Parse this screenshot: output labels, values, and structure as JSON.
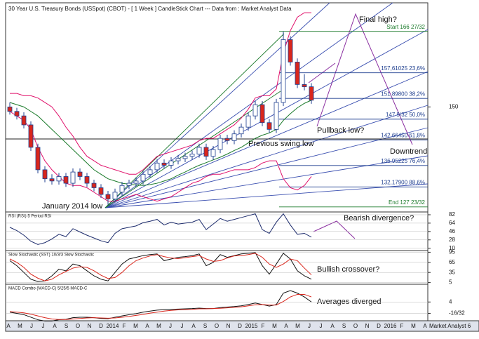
{
  "chart_data": [
    {
      "type": "candlestick",
      "title": "30 Year U.S. Treasury Bonds (USSpot) (CBOT) -  [ 1 Week ] CandleStick Chart --- Data from : Market Analyst Data",
      "open": [
        150,
        149,
        148,
        146,
        141,
        136,
        134,
        133.5,
        134.5,
        133,
        135.5,
        134.5,
        133,
        132,
        130.5,
        129.5,
        131,
        132.5,
        133,
        133.5,
        135,
        136,
        137.5,
        137,
        138,
        138.5,
        139,
        139.5,
        141,
        139,
        140.5,
        143,
        142.5,
        144,
        145.5,
        148,
        150.5,
        146.5,
        145,
        151,
        165,
        160,
        155,
        154.5
      ],
      "high": [
        151,
        149.8,
        148.8,
        146.8,
        141.8,
        136.8,
        135,
        135.3,
        135.3,
        136.3,
        136.3,
        135.3,
        133.8,
        132.8,
        131.3,
        131.8,
        133.3,
        133.8,
        134.3,
        135.8,
        136.8,
        138.3,
        138.3,
        138.8,
        139.3,
        139.8,
        140.3,
        141.8,
        141.8,
        141.3,
        143.8,
        143.8,
        144.8,
        146.3,
        148.8,
        151.3,
        151.3,
        147.3,
        151.8,
        166.8,
        165.8,
        160.8,
        157.3,
        155.3
      ],
      "low": [
        148.3,
        147.2,
        145.2,
        140.2,
        135.2,
        133.2,
        132.7,
        132.7,
        132.2,
        132.2,
        133.7,
        132.2,
        131.2,
        129.7,
        128.2,
        128.7,
        130.2,
        131.7,
        132.2,
        132.7,
        134.2,
        135.2,
        136.2,
        136.2,
        137.2,
        137.7,
        138.2,
        138.7,
        138.2,
        138.2,
        139.7,
        141.7,
        141.7,
        143.2,
        144.7,
        147.2,
        145.7,
        144.2,
        144.2,
        150.2,
        159.2,
        154.2,
        153.7,
        150.7
      ],
      "close": [
        149,
        148,
        146,
        141,
        136,
        134,
        133.5,
        134.5,
        133,
        135.5,
        134.5,
        133,
        132,
        130.5,
        129.5,
        131,
        132.5,
        133,
        133.5,
        135,
        136,
        137.5,
        137,
        138,
        138.5,
        139,
        139.5,
        141,
        139,
        140.5,
        143,
        142.5,
        144,
        145.5,
        148,
        150.5,
        146.5,
        145,
        151,
        165,
        160,
        155,
        154.5,
        151.5
      ],
      "up_color": "#ffffff",
      "down_color": "#d9261c",
      "edge_color": "#1f3f8f",
      "series": [
        {
          "name": "Upper band",
          "color": "#e0106a",
          "values": [
            153,
            153,
            152.5,
            152.5,
            152,
            151,
            150,
            148,
            145.5,
            143.5,
            141,
            139,
            138,
            137,
            136.5,
            136,
            135.5,
            135,
            135,
            136,
            137.5,
            139,
            139.5,
            140,
            140.5,
            141,
            141.5,
            142.5,
            143,
            143,
            144,
            145,
            146,
            147.5,
            149.5,
            152,
            152.5,
            152.5,
            154,
            162,
            167,
            170,
            171,
            171
          ]
        },
        {
          "name": "Moving average",
          "color": "#1a7a2a",
          "values": [
            151,
            150.5,
            150,
            149,
            148,
            146.5,
            145,
            143.5,
            142,
            140.5,
            139,
            137.5,
            136,
            135,
            134,
            133.5,
            133,
            132.8,
            132.6,
            132.5,
            132.7,
            133,
            133.5,
            134,
            134.8,
            135.5,
            136.3,
            137,
            137.6,
            138.2,
            138.8,
            139.5,
            140.3,
            141,
            142,
            143,
            143.7,
            144.2,
            145,
            147,
            148.5,
            149.8,
            150.8,
            151.5
          ]
        },
        {
          "name": "Lower band",
          "color": "#e0106a",
          "values": [
            149,
            148,
            147,
            145,
            141,
            138,
            136,
            134.5,
            133,
            132.5,
            132.5,
            132,
            131,
            130,
            129,
            129,
            129.5,
            130,
            130.5,
            130,
            129.5,
            129,
            129.5,
            130,
            131,
            132,
            133,
            133.5,
            134.5,
            135,
            135,
            135.5,
            136,
            136,
            136,
            136.5,
            137.5,
            138,
            138,
            134,
            132,
            131.5,
            132.5,
            134.5
          ]
        }
      ],
      "fib_levels": [
        {
          "value": 166.84375,
          "label": "Start 166 27/32",
          "color": "#1a7a2a"
        },
        {
          "value": 157.61025,
          "label": "157,61025 23,6%",
          "color": "#1f3f8f"
        },
        {
          "value": 151.898,
          "label": "151,89800 38,2%",
          "color": "#1f3f8f"
        },
        {
          "value": 147.28125,
          "label": "147 9/32 50,0%",
          "color": "#1f3f8f"
        },
        {
          "value": 142.6645,
          "label": "142,66450 61,8%",
          "color": "#1f3f8f"
        },
        {
          "value": 136.95225,
          "label": "136,95225 76,4%",
          "color": "#1f3f8f"
        },
        {
          "value": 132.179,
          "label": "132,17900 88,6%",
          "color": "#1f3f8f"
        },
        {
          "value": 127.71875,
          "label": "End 127 23/32",
          "color": "#1a7a2a"
        }
      ],
      "ylim": [
        126.6,
        173.2
      ],
      "yticks": [
        150
      ],
      "time_labels": [
        "A",
        "M",
        "J",
        "J",
        "A",
        "S",
        "O",
        "N",
        "D",
        "2014",
        "F",
        "M",
        "A",
        "M",
        "J",
        "J",
        "A",
        "S",
        "O",
        "N",
        "D",
        "2015",
        "F",
        "M",
        "A",
        "M",
        "J",
        "J",
        "A",
        "S",
        "O",
        "N",
        "D",
        "2016",
        "F",
        "M",
        "A"
      ]
    },
    {
      "type": "line",
      "title": "RSI (RSI) 5 Period RSI",
      "series": [
        {
          "name": "RSI",
          "color": "#1b2a6b",
          "values": [
            55,
            48,
            38,
            25,
            18,
            22,
            30,
            40,
            35,
            52,
            45,
            38,
            32,
            26,
            22,
            42,
            52,
            55,
            58,
            65,
            68,
            72,
            60,
            66,
            62,
            64,
            66,
            72,
            50,
            62,
            74,
            68,
            72,
            76,
            80,
            84,
            50,
            42,
            66,
            84,
            60,
            40,
            42,
            34
          ]
        }
      ],
      "ylim": [
        5,
        88
      ],
      "yticks": [
        82,
        64,
        46,
        28,
        10
      ]
    },
    {
      "type": "line",
      "title": "Slow Stochastic (SST) 10/3/3 Slow Stochastic",
      "series": [
        {
          "name": "%K",
          "color": "#111111",
          "values": [
            70,
            55,
            35,
            15,
            8,
            10,
            25,
            45,
            40,
            60,
            55,
            40,
            25,
            15,
            10,
            35,
            60,
            75,
            80,
            85,
            88,
            90,
            70,
            75,
            80,
            82,
            85,
            90,
            55,
            65,
            88,
            80,
            85,
            90,
            92,
            94,
            55,
            30,
            60,
            92,
            75,
            40,
            25,
            15
          ]
        },
        {
          "name": "%D",
          "color": "#d9261c",
          "values": [
            75,
            65,
            50,
            30,
            18,
            10,
            15,
            28,
            38,
            48,
            52,
            50,
            40,
            27,
            17,
            20,
            35,
            55,
            70,
            78,
            84,
            88,
            82,
            78,
            76,
            79,
            82,
            85,
            75,
            68,
            70,
            78,
            84,
            85,
            88,
            92,
            80,
            60,
            50,
            60,
            75,
            70,
            48,
            28
          ]
        }
      ],
      "ylim": [
        0,
        100
      ],
      "yticks": [
        95,
        65,
        35,
        5
      ]
    },
    {
      "type": "line",
      "title": "MACD Combo (MACD-C) 5/25/5 MACD-C",
      "series": [
        {
          "name": "MACD",
          "color": "#111111",
          "values": [
            0,
            -0.5,
            -1,
            -2,
            -3,
            -3.5,
            -3.5,
            -3,
            -2.8,
            -2.2,
            -2,
            -2,
            -2.2,
            -2.5,
            -2.6,
            -2,
            -1.5,
            -1,
            -0.6,
            0,
            0.4,
            0.8,
            1,
            1.1,
            1.2,
            1.3,
            1.4,
            1.6,
            1.4,
            1.4,
            1.8,
            2,
            2.2,
            2.5,
            3,
            3.6,
            3,
            2.4,
            3,
            7.5,
            8.5,
            7.5,
            6,
            4
          ]
        },
        {
          "name": "Signal",
          "color": "#d9261c",
          "values": [
            0.2,
            0,
            -0.3,
            -0.8,
            -1.5,
            -2.2,
            -2.7,
            -2.9,
            -2.9,
            -2.7,
            -2.5,
            -2.3,
            -2.2,
            -2.3,
            -2.4,
            -2.3,
            -2,
            -1.7,
            -1.3,
            -0.9,
            -0.4,
            0,
            0.4,
            0.7,
            0.9,
            1,
            1.1,
            1.3,
            1.3,
            1.4,
            1.5,
            1.7,
            1.9,
            2.1,
            2.5,
            2.9,
            3,
            2.8,
            2.8,
            4.2,
            6,
            7,
            7,
            6
          ]
        }
      ],
      "ylim": [
        -3.4,
        11
      ],
      "yticks": [
        4,
        {
          "value": -0.5,
          "label": "-16/32"
        }
      ]
    }
  ],
  "annotations": [
    "Final high?",
    "Pullback low?",
    "Previous swing low",
    "Downtrend",
    "January 2014 low",
    "Bearish divergence?",
    "Bullish crossover?",
    "Averages diverged"
  ],
  "footer": "Market Analyst 6"
}
